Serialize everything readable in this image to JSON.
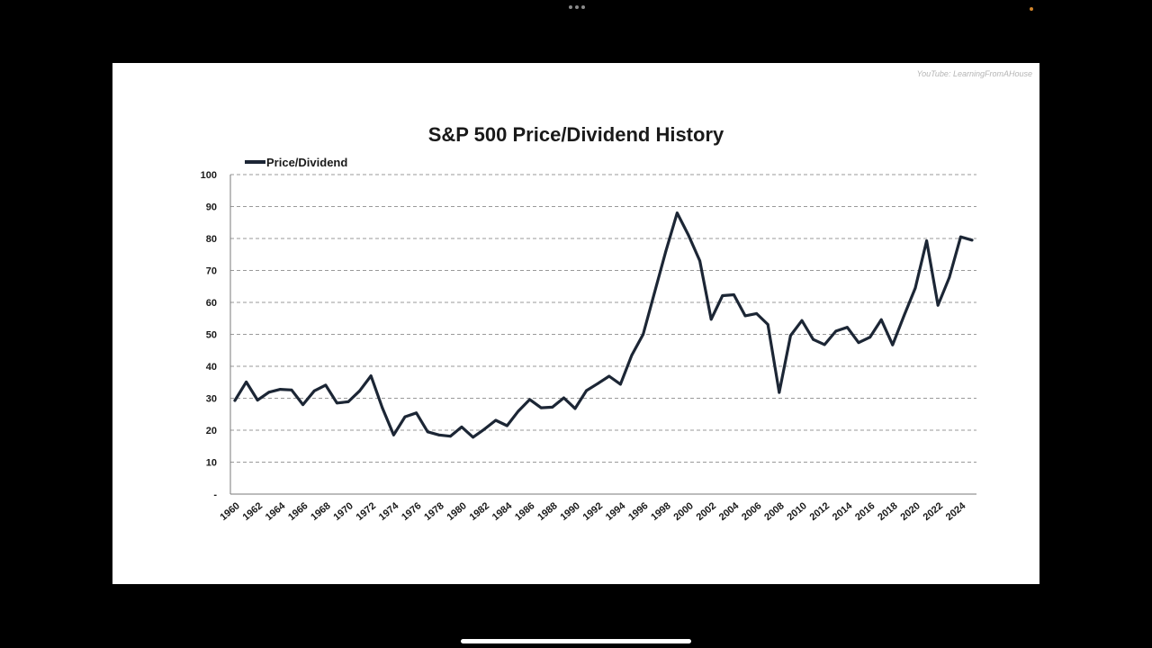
{
  "watermark": "YouTube: LearningFromAHouse",
  "colors": {
    "line": "#1c2635",
    "grid": "#9a9a9a",
    "background": "#ffffff"
  },
  "chart_data": {
    "type": "line",
    "title": "S&P 500 Price/Dividend History",
    "xlabel": "",
    "ylabel": "",
    "legend": {
      "placement": "top-left"
    },
    "grid": true,
    "ylim": [
      0,
      100
    ],
    "yticks": [
      0,
      10,
      20,
      30,
      40,
      50,
      60,
      70,
      80,
      90,
      100
    ],
    "ytick_labels": [
      "-",
      "10",
      "20",
      "30",
      "40",
      "50",
      "60",
      "70",
      "80",
      "90",
      "100"
    ],
    "xticks": [
      "1960",
      "1962",
      "1964",
      "1966",
      "1968",
      "1970",
      "1972",
      "1974",
      "1976",
      "1978",
      "1980",
      "1982",
      "1984",
      "1986",
      "1988",
      "1990",
      "1992",
      "1994",
      "1996",
      "1998",
      "2000",
      "2002",
      "2004",
      "2006",
      "2008",
      "2010",
      "2012",
      "2014",
      "2016",
      "2018",
      "2020",
      "2022",
      "2024"
    ],
    "x": [
      1960,
      1961,
      1962,
      1963,
      1964,
      1965,
      1966,
      1967,
      1968,
      1969,
      1970,
      1971,
      1972,
      1973,
      1974,
      1975,
      1976,
      1977,
      1978,
      1979,
      1980,
      1981,
      1982,
      1983,
      1984,
      1985,
      1986,
      1987,
      1988,
      1989,
      1990,
      1991,
      1992,
      1993,
      1994,
      1995,
      1996,
      1997,
      1998,
      1999,
      2000,
      2001,
      2002,
      2003,
      2004,
      2005,
      2006,
      2007,
      2008,
      2009,
      2010,
      2011,
      2012,
      2013,
      2014,
      2015,
      2016,
      2017,
      2018,
      2019,
      2020,
      2021,
      2022,
      2023,
      2024,
      2025
    ],
    "series": [
      {
        "name": "Price/Dividend",
        "values": [
          29.3,
          35.1,
          29.4,
          31.9,
          32.8,
          32.6,
          28.0,
          32.3,
          34.1,
          28.5,
          28.9,
          32.3,
          37.0,
          27.0,
          18.5,
          24.2,
          25.4,
          19.5,
          18.5,
          18.1,
          21.0,
          17.8,
          20.3,
          23.1,
          21.4,
          26.0,
          29.6,
          27.0,
          27.2,
          30.1,
          26.8,
          32.4,
          34.6,
          36.9,
          34.4,
          43.5,
          50.0,
          63.0,
          76.0,
          88.0,
          81.0,
          73.0,
          54.7,
          62.1,
          62.4,
          55.8,
          56.5,
          53.1,
          31.8,
          49.6,
          54.3,
          48.4,
          46.8,
          51.0,
          52.2,
          47.4,
          49.1,
          54.6,
          46.7,
          55.8,
          64.5,
          79.3,
          59.1,
          67.8,
          80.5,
          79.5
        ]
      }
    ]
  }
}
